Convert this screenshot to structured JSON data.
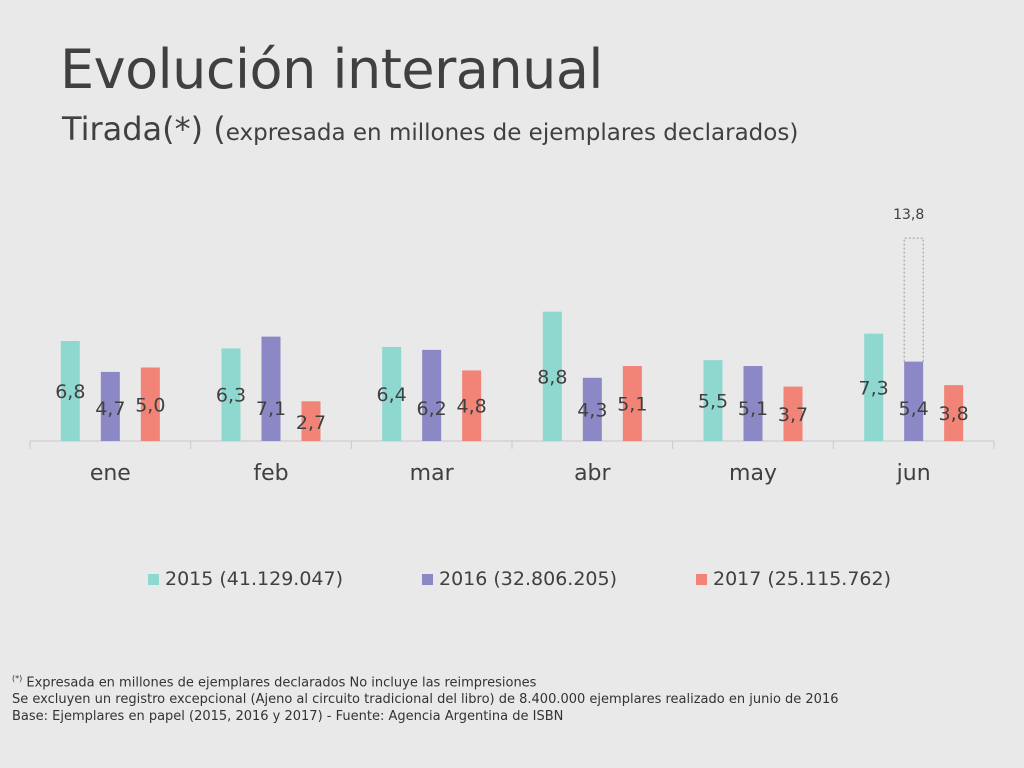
{
  "title": "Evolución interanual",
  "subtitle": {
    "main": "Tirada(*) (",
    "detail": "expresada en millones de ejemplares declarados)"
  },
  "chart_data": {
    "type": "bar",
    "categories": [
      "ene",
      "feb",
      "mar",
      "abr",
      "may",
      "jun"
    ],
    "series": [
      {
        "name": "2015 (41.129.047)",
        "color": "#8ed8cf",
        "values": [
          6.8,
          6.3,
          6.4,
          8.8,
          5.5,
          7.3
        ],
        "labels": [
          "6,8",
          "6,3",
          "6,4",
          "8,8",
          "5,5",
          "7,3"
        ]
      },
      {
        "name": "2016 (32.806.205)",
        "color": "#8c88c5",
        "values": [
          4.7,
          7.1,
          6.2,
          4.3,
          5.1,
          5.4
        ],
        "labels": [
          "4,7",
          "7,1",
          "6,2",
          "4,3",
          "5,1",
          "5,4"
        ]
      },
      {
        "name": "2017 (25.115.762)",
        "color": "#f28377",
        "values": [
          5.0,
          2.7,
          4.8,
          5.1,
          3.7,
          3.8
        ],
        "labels": [
          "5,0",
          "2,7",
          "4,8",
          "5,1",
          "3,7",
          "3,8"
        ]
      }
    ],
    "annotation": {
      "category": "jun",
      "series": "2016 (32.806.205)",
      "value": 13.8,
      "label": "13,8"
    },
    "ylim": [
      0,
      14
    ],
    "grid": false,
    "legend": "bottom"
  },
  "footnotes": {
    "line1_mark": "(*)",
    "line1": " Expresada en millones de ejemplares declarados  No incluye las reimpresiones",
    "line2": "Se excluyen un registro excepcional (Ajeno al circuito tradicional del libro) de 8.400.000 ejemplares realizado en junio de 2016",
    "line3": "Base: Ejemplares en papel (2015, 2016 y 2017) - Fuente: Agencia Argentina de ISBN"
  }
}
